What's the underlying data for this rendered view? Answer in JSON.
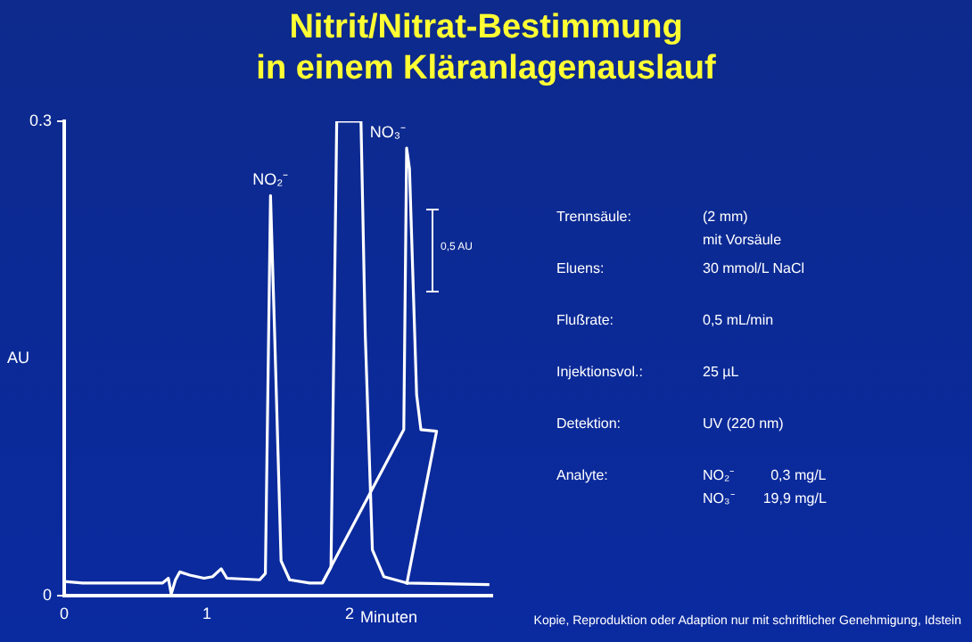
{
  "chart_data": {
    "type": "line",
    "title": "Nitrit/Nitrat-Bestimmung\nin einem Kläranlagenauslauf",
    "xlabel": "Minuten",
    "ylabel": "AU",
    "xlim": [
      0,
      3
    ],
    "xticks": [
      0,
      1,
      2
    ],
    "ylim": [
      0,
      0.3
    ],
    "yticks": [
      0,
      0.3
    ],
    "grid": false,
    "legend": false,
    "marker": "none",
    "line_style": "solid",
    "series": [
      {
        "color": "#ffffff",
        "x": [
          0,
          0.13,
          0.69,
          0.73,
          0.75,
          0.78,
          0.81,
          0.88,
          0.98,
          1.04,
          1.1,
          1.14,
          1.37,
          1.41,
          1.446,
          1.475,
          1.52,
          1.58,
          1.72,
          1.81,
          1.87,
          1.91,
          2.08,
          2.11,
          2.16,
          2.24,
          2.4,
          2.98
        ],
        "values": [
          0.009,
          0.008,
          0.008,
          0.011,
          0.001,
          0.01,
          0.015,
          0.013,
          0.011,
          0.012,
          0.017,
          0.011,
          0.01,
          0.014,
          0.253,
          0.165,
          0.022,
          0.01,
          0.008,
          0.008,
          0.018,
          0.3,
          0.3,
          0.165,
          0.029,
          0.012,
          0.008,
          0.007
        ]
      },
      {
        "color": "#ffffff",
        "x": [
          1.81,
          2.38,
          2.4,
          2.42,
          2.47,
          2.5,
          2.61,
          2.4
        ],
        "values": [
          0.008,
          0.105,
          0.283,
          0.27,
          0.127,
          0.105,
          0.104,
          0.007
        ]
      }
    ],
    "annotations": [
      {
        "text": "NO₂⁻",
        "x": 1.446,
        "y": 0.253
      },
      {
        "text": "NO₃⁻",
        "x": 2.08,
        "y": 0.3
      },
      "0,5 AU",
      "Trennsäule:",
      "(2 mm)\nmit Vorsäule",
      "Eluens:",
      "30 mmol/L NaCl",
      "Flußrate:",
      "0,5 mL/min",
      "Injektionsvol.:",
      "25 µL",
      "Detektion:",
      "UV (220 nm)",
      "Analyte:",
      "NO₂⁻         0,3 mg/L\nNO₃⁻       19,9 mg/L",
      "Kopie, Reproduktion oder Adaption nur mit schriftlicher Genehmigung, Idstein"
    ]
  }
}
